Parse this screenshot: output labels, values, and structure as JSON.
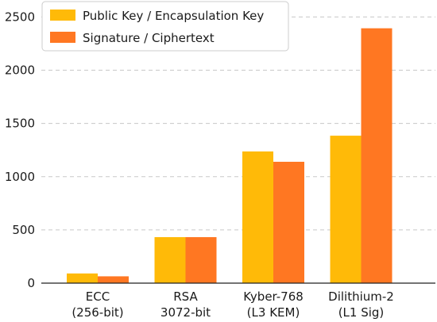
{
  "chart_data": {
    "type": "bar",
    "title": "",
    "xlabel": "",
    "ylabel": "",
    "categories": [
      [
        "ECC",
        "(256-bit)"
      ],
      [
        "RSA",
        "3072-bit"
      ],
      [
        "Kyber-768",
        "(L3 KEM)"
      ],
      [
        "Dilithium-2",
        "(L1 Sig)"
      ]
    ],
    "series": [
      {
        "name": "Public Key / Encapsulation Key",
        "color": "#FFBA08",
        "values": [
          91,
          432,
          1237,
          1385
        ]
      },
      {
        "name": "Signature / Ciphertext",
        "color": "#FF7722",
        "values": [
          64,
          432,
          1140,
          2394
        ]
      }
    ],
    "ylim": [
      0,
      2600
    ],
    "yticks": [
      "0",
      "500",
      "1000",
      "1500",
      "2000",
      "2500"
    ],
    "grid": true,
    "legend_position": "top-left"
  }
}
